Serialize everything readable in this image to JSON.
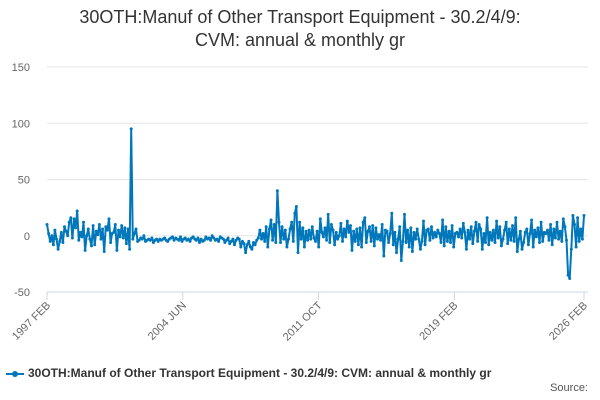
{
  "chart_data": {
    "type": "line",
    "title_line1": "30OTH:Manuf of Other Transport Equipment - 30.2/4/9:",
    "title_line2": "CVM: annual & monthly gr",
    "xlabel": "",
    "ylabel": "",
    "ylim": [
      -50,
      150
    ],
    "y_ticks": [
      150,
      100,
      50,
      0,
      -50
    ],
    "x_range": [
      "1997 FEB",
      "2026 FEB"
    ],
    "x_ticks": [
      "1997 FEB",
      "2004 JUN",
      "2011 OCT",
      "2019 FEB",
      "2026 FEB"
    ],
    "grid": true,
    "legend_position": "bottom",
    "series_color": "#0077bb",
    "series": [
      {
        "name": "30OTH:Manuf of Other Transport Equipment - 30.2/4/9: CVM: annual & monthly gr",
        "x_start": "1997 FEB",
        "frequency": "monthly",
        "values": [
          10,
          2,
          -5,
          0,
          -8,
          5,
          -3,
          -12,
          -5,
          3,
          -6,
          8,
          4,
          0,
          12,
          16,
          -2,
          15,
          7,
          22,
          -4,
          3,
          -1,
          12,
          -13,
          0,
          6,
          -3,
          -9,
          9,
          -8,
          4,
          1,
          10,
          -3,
          6,
          -14,
          8,
          5,
          15,
          -6,
          2,
          3,
          10,
          -13,
          5,
          -1,
          9,
          -2,
          7,
          -7,
          6,
          -12,
          95,
          -3,
          2,
          6,
          -5,
          -4,
          -2,
          -3,
          0,
          -5,
          -4,
          -3,
          -4,
          -2,
          -6,
          -4,
          -3,
          -5,
          -3,
          -4,
          -3,
          -2,
          -4,
          -5,
          -3,
          -2,
          -1,
          -4,
          -2,
          -3,
          -4,
          -1,
          -5,
          -3,
          -2,
          -4,
          -3,
          -5,
          -2,
          -1,
          -3,
          -4,
          -2,
          -6,
          -3,
          -5,
          -4,
          -1,
          -3,
          -2,
          -4,
          0,
          -2,
          -4,
          -3,
          -5,
          -1,
          -2,
          -3,
          -6,
          -4,
          -2,
          -7,
          -5,
          -3,
          -8,
          -4,
          -2,
          -3,
          -10,
          -5,
          -7,
          -15,
          -8,
          -5,
          -10,
          -12,
          -6,
          -8,
          -4,
          -2,
          5,
          -3,
          2,
          -5,
          8,
          -10,
          6,
          14,
          -4,
          10,
          -6,
          40,
          12,
          -6,
          8,
          -3,
          5,
          -10,
          -3,
          6,
          12,
          -5,
          20,
          26,
          -15,
          12,
          -3,
          7,
          -10,
          4,
          -4,
          5,
          -3,
          8,
          -2,
          -5,
          4,
          -10,
          15,
          3,
          -1,
          7,
          -4,
          19,
          -6,
          10,
          5,
          -8,
          3,
          -3,
          0,
          11,
          -5,
          6,
          -1,
          13,
          3,
          9,
          -13,
          4,
          -5,
          6,
          -8,
          7,
          -10,
          12,
          16,
          -6,
          4,
          8,
          -5,
          9,
          -9,
          7,
          -3,
          1,
          -4,
          10,
          -18,
          5,
          4,
          -6,
          2,
          20,
          -8,
          3,
          -15,
          -3,
          8,
          -22,
          -5,
          19,
          -6,
          5,
          -10,
          7,
          -14,
          3,
          -3,
          6,
          -3,
          -12,
          -5,
          13,
          -8,
          5,
          6,
          -4,
          8,
          -2,
          3,
          -1,
          5,
          2,
          -6,
          14,
          -9,
          8,
          -5,
          4,
          -6,
          9,
          -10,
          2,
          3,
          -1,
          6,
          -2,
          11,
          3,
          -12,
          5,
          -3,
          8,
          -7,
          4,
          12,
          -5,
          10,
          6,
          -12,
          2,
          -6,
          16,
          -8,
          3,
          -4,
          5,
          -6,
          13,
          -2,
          8,
          -9,
          -3,
          5,
          12,
          -7,
          6,
          -4,
          9,
          -5,
          16,
          -14,
          -3,
          4,
          -12,
          -6,
          3,
          6,
          -8,
          2,
          14,
          -10,
          5,
          -1,
          7,
          -6,
          12,
          -5,
          3,
          2,
          5,
          -4,
          10,
          -8,
          6,
          -2,
          12,
          -3,
          4,
          -5,
          15,
          8,
          -4,
          -35,
          -38,
          -12,
          18,
          10,
          -10,
          16,
          -5,
          6,
          -3,
          18
        ]
      }
    ]
  },
  "source_label": "Source:"
}
